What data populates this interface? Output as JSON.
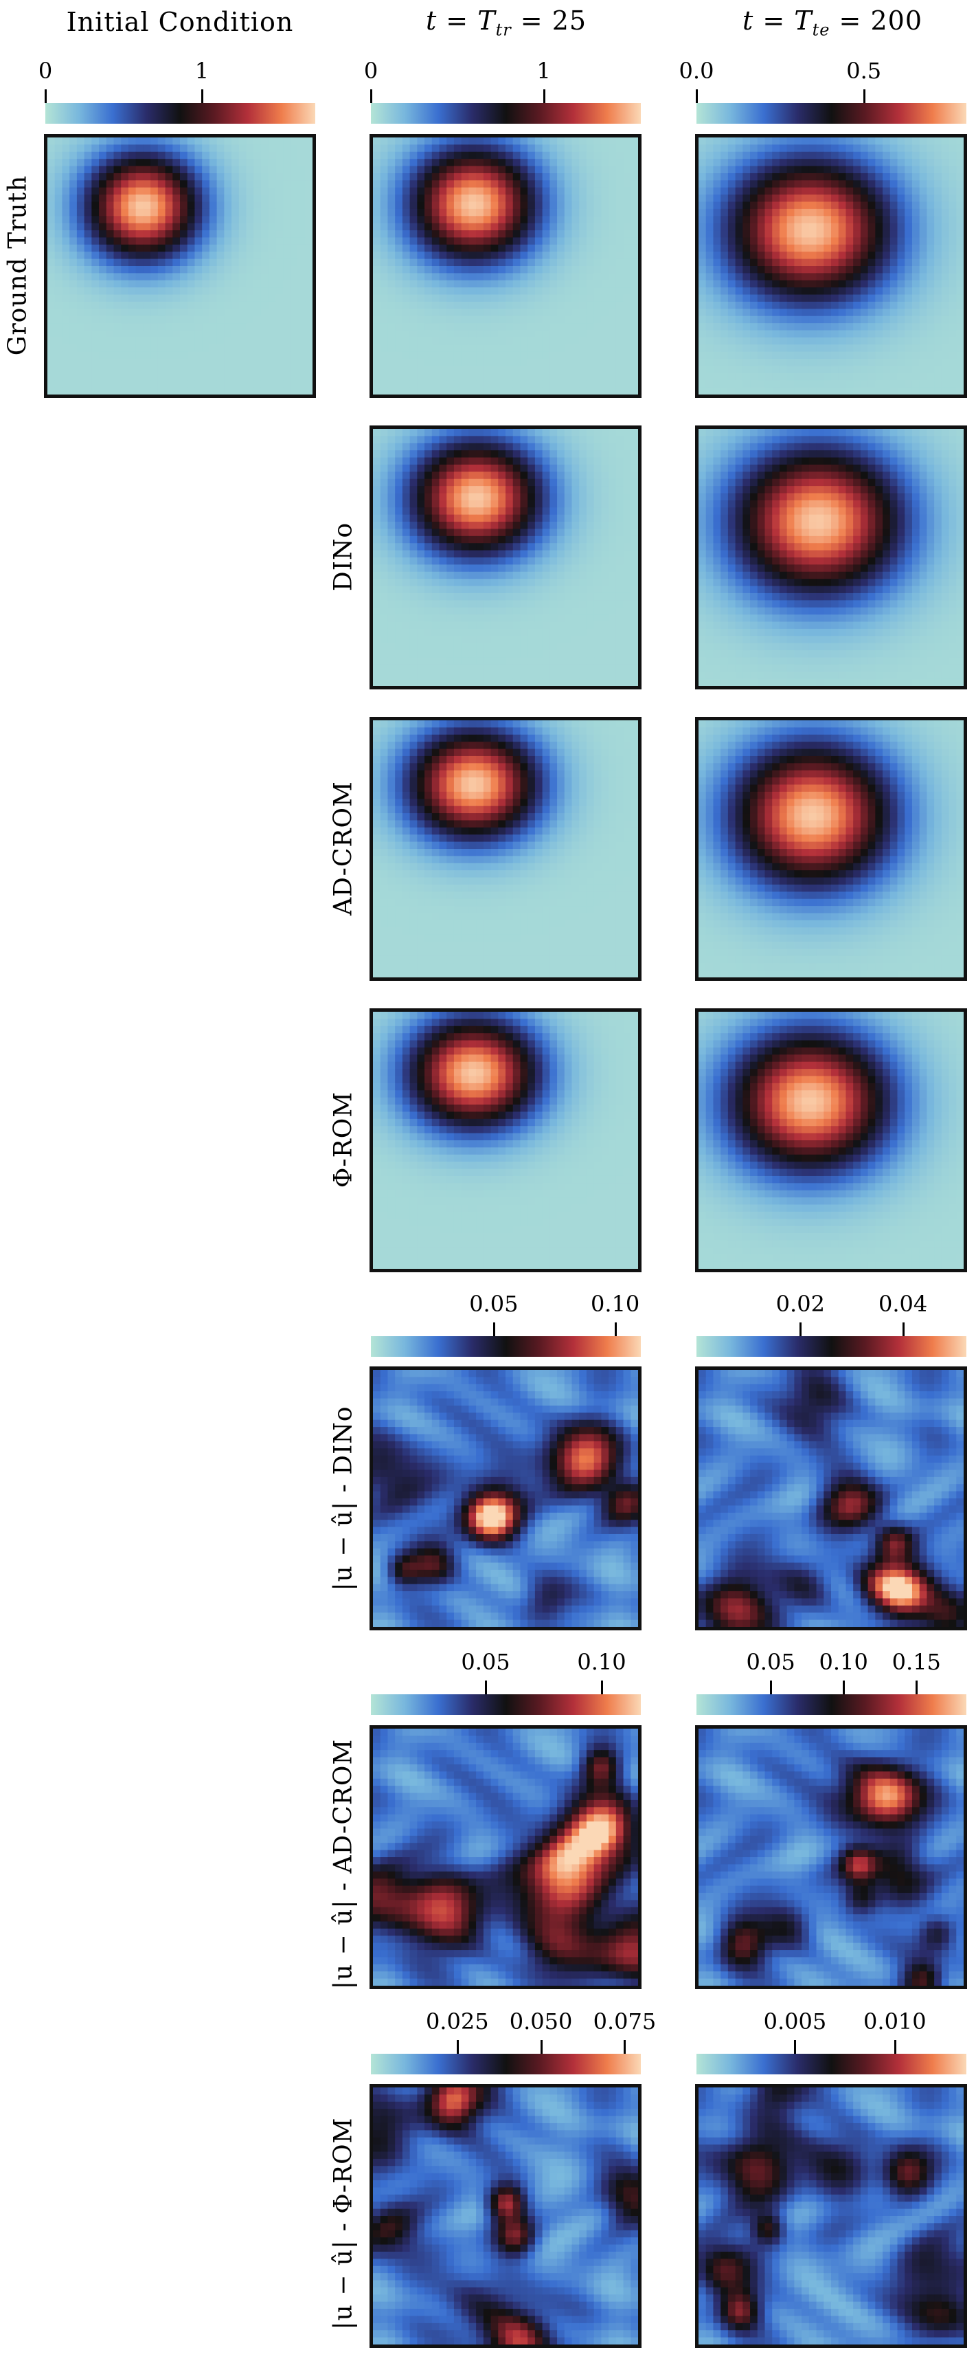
{
  "columns": {
    "initial": "Initial Condition",
    "train_pre": "t = T",
    "train_sub": "tr",
    "train_post": " = 25",
    "test_pre": "t = T",
    "test_sub": "te",
    "test_post": " = 200"
  },
  "rows": {
    "ground_truth": "Ground Truth",
    "dino": "DINo",
    "adcrom": "AD-CROM",
    "phirom": "Φ-ROM",
    "err_dino": "|u − û| - DINo",
    "err_adcrom": "|u − û| - AD-CROM",
    "err_phirom": "|u − û| - Φ-ROM"
  },
  "colorbars": {
    "cb_initial": [
      "0",
      "1"
    ],
    "cb_train": [
      "0",
      "1"
    ],
    "cb_test": [
      "0.0",
      "0.5"
    ],
    "cb_err_dino_train": [
      "0.05",
      "0.10"
    ],
    "cb_err_dino_test": [
      "0.02",
      "0.04"
    ],
    "cb_err_adcrom_train": [
      "0.05",
      "0.10"
    ],
    "cb_err_adcrom_test": [
      "0.05",
      "0.10",
      "0.15"
    ],
    "cb_err_phirom_train": [
      "0.025",
      "0.050",
      "0.075"
    ],
    "cb_err_phirom_test": [
      "0.005",
      "0.010"
    ]
  },
  "colormap": {
    "stops": [
      "#b4e4d6",
      "#78b7dd",
      "#3a6fd0",
      "#2a2c6a",
      "#111111",
      "#5a1a22",
      "#b3303a",
      "#ef7d4c",
      "#fbd8b6"
    ]
  }
}
